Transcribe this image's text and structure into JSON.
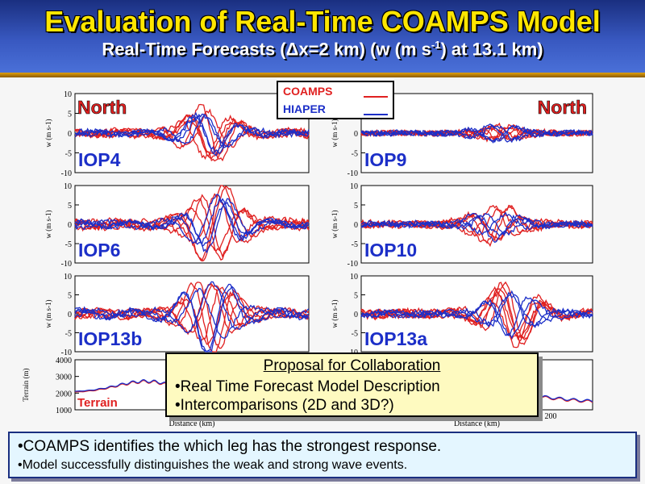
{
  "header": {
    "title": "Evaluation of Real-Time COAMPS Model",
    "subtitle_prefix": "Real-Time Forecasts (",
    "subtitle_delta": "Δ",
    "subtitle_mid": "x=2 km) (w (m s",
    "subtitle_sup": "-1",
    "subtitle_suffix": ") at 13.1 km)"
  },
  "legend": {
    "coamps_label": "COAMPS",
    "hiaper_label": "HIAPER",
    "coamps_color": "#e02020",
    "hiaper_color": "#1c2fc8"
  },
  "chart_data": [
    {
      "type": "line",
      "title": "IOP4",
      "region_label": "North",
      "xlabel": "",
      "ylabel": "w (m s-1)",
      "ylim": [
        -10,
        10
      ],
      "y_ticks": [
        "10",
        "5",
        "0",
        "-5",
        "-10"
      ],
      "series": [
        {
          "name": "COAMPS",
          "color": "#e02020",
          "peak_amplitude": 6
        },
        {
          "name": "HIAPER",
          "color": "#1c2fc8",
          "peak_amplitude": 4
        }
      ]
    },
    {
      "type": "line",
      "title": "IOP9",
      "region_label": "North",
      "xlabel": "",
      "ylabel": "w (m s-1)",
      "ylim": [
        -10,
        10
      ],
      "y_ticks": [
        "10",
        "5",
        "0",
        "-5",
        "-10"
      ],
      "series": [
        {
          "name": "COAMPS",
          "color": "#e02020",
          "peak_amplitude": 1.5
        },
        {
          "name": "HIAPER",
          "color": "#1c2fc8",
          "peak_amplitude": 2
        }
      ]
    },
    {
      "type": "line",
      "title": "IOP6",
      "region_label": "",
      "xlabel": "",
      "ylabel": "w (m s-1)",
      "ylim": [
        -10,
        10
      ],
      "y_ticks": [
        "10",
        "5",
        "0",
        "-5",
        "-10"
      ],
      "series": [
        {
          "name": "COAMPS",
          "color": "#e02020",
          "peak_amplitude": 8
        },
        {
          "name": "HIAPER",
          "color": "#1c2fc8",
          "peak_amplitude": 6
        }
      ]
    },
    {
      "type": "line",
      "title": "IOP10",
      "region_label": "",
      "xlabel": "",
      "ylabel": "w (m s-1)",
      "ylim": [
        -10,
        10
      ],
      "y_ticks": [
        "10",
        "5",
        "0",
        "-5",
        "-10"
      ],
      "series": [
        {
          "name": "COAMPS",
          "color": "#e02020",
          "peak_amplitude": 4
        },
        {
          "name": "HIAPER",
          "color": "#1c2fc8",
          "peak_amplitude": 3
        }
      ]
    },
    {
      "type": "line",
      "title": "IOP13b",
      "region_label": "",
      "xlabel": "",
      "ylabel": "w (m s-1)",
      "ylim": [
        -10,
        10
      ],
      "y_ticks": [
        "10",
        "5",
        "0",
        "-5",
        "-10"
      ],
      "series": [
        {
          "name": "COAMPS",
          "color": "#e02020",
          "peak_amplitude": 8
        },
        {
          "name": "HIAPER",
          "color": "#1c2fc8",
          "peak_amplitude": 8
        }
      ]
    },
    {
      "type": "line",
      "title": "IOP13a",
      "region_label": "",
      "xlabel": "",
      "ylabel": "w (m s-1)",
      "ylim": [
        -10,
        10
      ],
      "y_ticks": [
        "10",
        "5",
        "0",
        "-5",
        "-10"
      ],
      "series": [
        {
          "name": "COAMPS",
          "color": "#e02020",
          "peak_amplitude": 7
        },
        {
          "name": "HIAPER",
          "color": "#1c2fc8",
          "peak_amplitude": 5
        }
      ]
    },
    {
      "type": "line",
      "title": "Terrain",
      "region_label": "",
      "xlabel": "Distance (km)",
      "ylabel": "Terrain (m)",
      "ylim": [
        1000,
        4000
      ],
      "y_ticks": [
        "4000",
        "3000",
        "2000",
        "1000"
      ],
      "x_ticks": [
        "0"
      ],
      "series": [
        {
          "name": "COAMPS",
          "color": "#e02020"
        },
        {
          "name": "HIAPER",
          "color": "#1c2fc8"
        }
      ]
    },
    {
      "type": "line",
      "title": "",
      "region_label": "",
      "xlabel": "Distance (km)",
      "ylabel": "",
      "ylim": [
        1000,
        4000
      ],
      "y_ticks": [],
      "x_ticks": [
        "200"
      ],
      "series": [
        {
          "name": "COAMPS",
          "color": "#e02020"
        },
        {
          "name": "HIAPER",
          "color": "#1c2fc8"
        }
      ]
    }
  ],
  "proposal": {
    "title": "Proposal for Collaboration",
    "items": [
      "•Real Time Forecast Model Description",
      "•Intercomparisons (2D and 3D?)"
    ]
  },
  "summary": {
    "items": [
      "•COAMPS identifies the which leg has the strongest response.",
      "•Model successfully distinguishes the weak and strong wave events."
    ]
  }
}
